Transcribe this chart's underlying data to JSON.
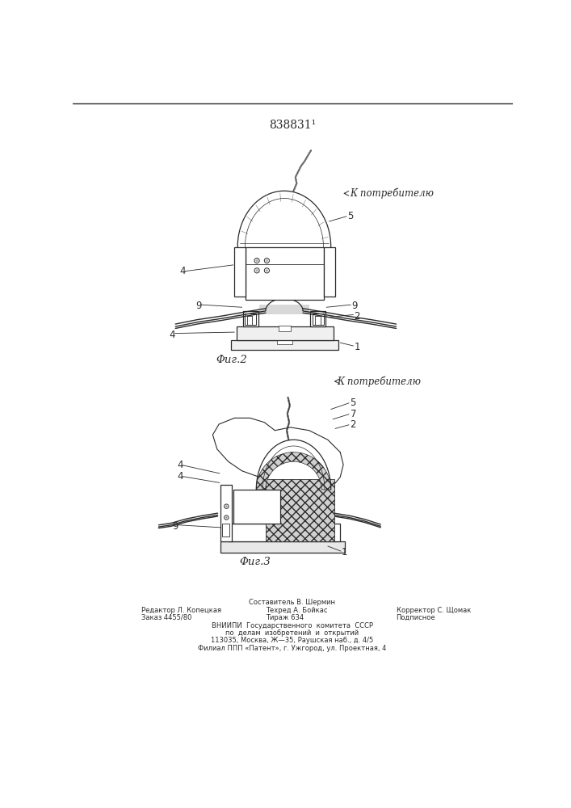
{
  "patent_number": "838831¹",
  "fig2_label": "Φиг.2",
  "fig3_label": "Φиг.3",
  "k_potrebitelyu": "К потребителю",
  "footer_line1_left": "Редактор Л. Копецкая",
  "footer_line1_center": "Составитель В. Шермин",
  "footer_line1_right": "Корректор С. Щомак",
  "footer_line2_left": "Заказ 4455/80",
  "footer_line2_center": "Техред А. Бойкас",
  "footer_line2_center2": "Тираж 634",
  "footer_line2_right": "Подписное",
  "footer_vniiipi": "ВНИИПИ  Государственного  комитета  СССР",
  "footer_vniiipi2": "по  делам  изобретений  и  открытий",
  "footer_address": "113035, Москва, Ж—35, Раушская наб., д. 4/5",
  "footer_filial": "Филиал ППП «Патент», г. Ужгород, ул. Проектная, 4",
  "bg_color": "#ffffff",
  "line_color": "#2a2a2a",
  "label_fontsize": 8.5,
  "fig_label_fontsize": 9.5,
  "patent_fontsize": 10,
  "footer_fontsize": 6.0
}
